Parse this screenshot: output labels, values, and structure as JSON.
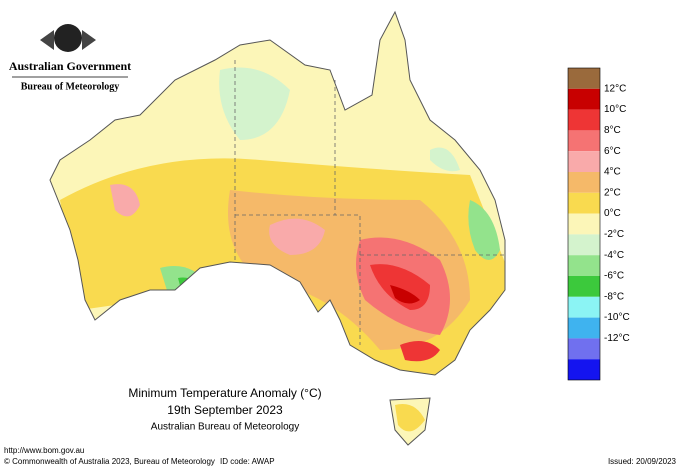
{
  "header": {
    "agency": "Australian Government",
    "bureau": "Bureau of Meteorology"
  },
  "map": {
    "title": "Minimum Temperature Anomaly (°C)",
    "date": "19th September 2023",
    "source": "Australian Bureau of Meteorology"
  },
  "legend": {
    "labels": [
      "12°C",
      "10°C",
      "8°C",
      "6°C",
      "4°C",
      "2°C",
      "0°C",
      "-2°C",
      "-4°C",
      "-6°C",
      "-8°C",
      "-10°C",
      "-12°C"
    ],
    "colors": [
      "#9a6a3c",
      "#c80000",
      "#ee3535",
      "#f57373",
      "#f9aaaa",
      "#f5b969",
      "#f9da4f",
      "#fcf6b8",
      "#d4f3cd",
      "#93e38c",
      "#3cc93c",
      "#8bf4f4",
      "#3fb3ef",
      "#7070ef",
      "#1414f0"
    ]
  },
  "footer": {
    "url": "http://www.bom.gov.au",
    "copyright": "© Commonwealth of Australia 2023, Bureau of Meteorology",
    "id_code": "ID code: AWAP",
    "issued": "Issued: 20/09/2023"
  }
}
